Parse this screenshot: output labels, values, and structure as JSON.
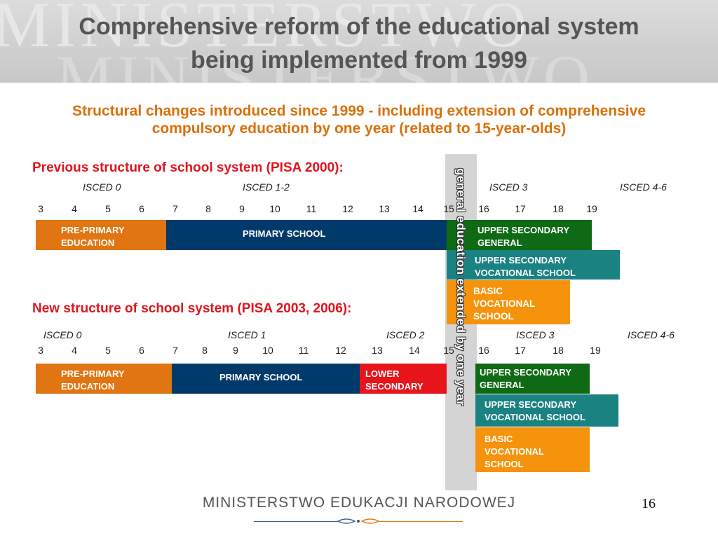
{
  "header": {
    "title_line1": "Comprehensive reform of the educational system",
    "title_line2": "being implemented from 1999",
    "watermark_1": "MINISTERSTWO",
    "watermark_2": "MINISTERSTWO"
  },
  "subtitle": {
    "line1": "Structural changes introduced since 1999 - including extension of comprehensive",
    "line2": "compulsory education by one year (related to 15-year-olds)"
  },
  "extension_label": "general education extended by one year",
  "old_structure": {
    "heading": "Previous structure of school system (PISA 2000):",
    "isced": [
      "ISCED 0",
      "ISCED 1-2",
      "ISCED 3",
      "ISCED 4-6"
    ],
    "ages": [
      "3",
      "4",
      "5",
      "6",
      "7",
      "8",
      "9",
      "10",
      "11",
      "12",
      "13",
      "14",
      "15",
      "16",
      "17",
      "18",
      "19"
    ],
    "blocks": {
      "preprimary": "PRE-PRIMARY EDUCATION",
      "primary": "PRIMARY SCHOOL",
      "upper_general": "UPPER SECONDARY GENERAL",
      "upper_vocational": "UPPER SECONDARY VOCATIONAL SCHOOL",
      "basic_vocational": "BASIC VOCATIONAL SCHOOL"
    }
  },
  "new_structure": {
    "heading": "New structure of school system (PISA 2003, 2006):",
    "isced": [
      "ISCED 0",
      "ISCED 1",
      "ISCED 2",
      "ISCED 3",
      "ISCED 4-6"
    ],
    "ages": [
      "3",
      "4",
      "5",
      "6",
      "7",
      "8",
      "9",
      "10",
      "11",
      "12",
      "13",
      "14",
      "15",
      "16",
      "17",
      "18",
      "19"
    ],
    "blocks": {
      "preprimary": "PRE-PRIMARY EDUCATION",
      "primary": "PRIMARY SCHOOL",
      "lower_secondary": "LOWER SECONDARY",
      "upper_general": "UPPER SECONDARY GENERAL",
      "upper_vocational": "UPPER SECONDARY VOCATIONAL SCHOOL",
      "basic_vocational": "BASIC VOCATIONAL SCHOOL"
    }
  },
  "colors": {
    "preprimary": "#e07512",
    "primary": "#003a6b",
    "lower_secondary": "#e8141c",
    "upper_general": "#0e6a14",
    "upper_vocational": "#1b8282",
    "basic_vocational": "#f5930d",
    "subtitle": "#d9700a",
    "section_heading": "#e0141e"
  },
  "footer": {
    "ministry": "MINISTERSTWO EDUKACJI NARODOWEJ",
    "page_number": "16"
  }
}
